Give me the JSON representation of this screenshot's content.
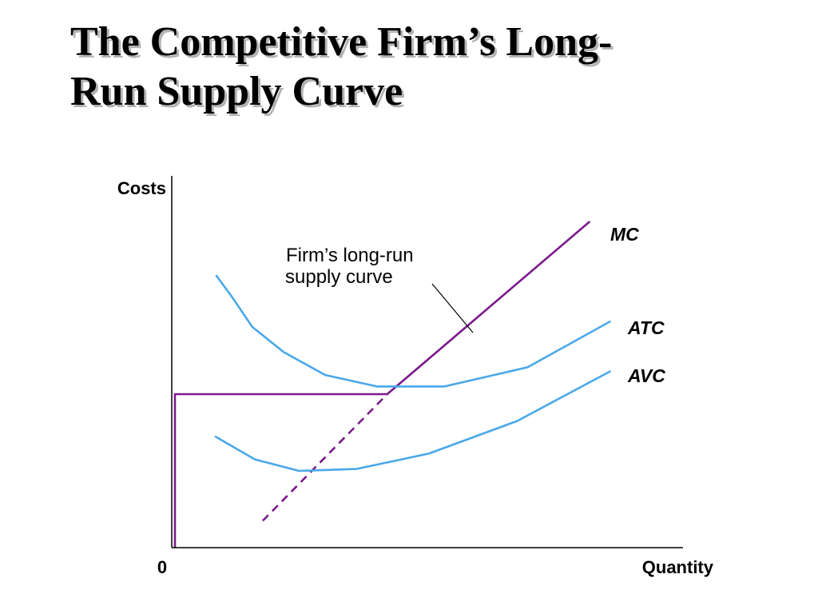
{
  "slide": {
    "title_line1": "The Competitive Firm’s Long-",
    "title_line2": "Run Supply Curve"
  },
  "colors": {
    "mc": "#7b1a8c",
    "cost_curves": "#4aa8ea",
    "axis": "#000000",
    "pointer": "#000000",
    "title_shadow": "#b3b3b3"
  },
  "chart_data": {
    "type": "line",
    "xlabel": "Quantity",
    "ylabel": "Costs",
    "origin_label": "0",
    "xlim": [
      0,
      10
    ],
    "ylim": [
      0,
      10
    ],
    "grid": false,
    "ticks": false,
    "series": [
      {
        "name": "MC",
        "style": "solid",
        "color": "#7b1a8c",
        "x": [
          4.09,
          7.99
        ],
        "y": [
          4.0,
          8.5
        ]
      },
      {
        "name": "MC (below minimum AVC)",
        "style": "dashed",
        "color": "#7b1a8c",
        "x": [
          1.69,
          4.09
        ],
        "y": [
          0.7,
          4.0
        ]
      },
      {
        "name": "ATC",
        "style": "solid",
        "color": "#4aa8ea",
        "x": [
          0.79,
          1.09,
          1.49,
          2.09,
          2.89,
          3.89,
          5.19,
          6.79,
          8.39
        ],
        "y": [
          7.1,
          6.55,
          5.75,
          5.1,
          4.5,
          4.2,
          4.2,
          4.7,
          5.9
        ]
      },
      {
        "name": "AVC",
        "style": "solid",
        "color": "#4aa8ea",
        "x": [
          0.77,
          1.54,
          2.39,
          3.49,
          4.89,
          6.59,
          8.39
        ],
        "y": [
          2.9,
          2.3,
          2.0,
          2.05,
          2.45,
          3.3,
          4.6
        ]
      },
      {
        "name": "Firm’s long-run supply curve",
        "style": "solid",
        "color": "#7b1a8c",
        "x": [
          0,
          0,
          4.09
        ],
        "y": [
          0,
          4.0,
          4.0
        ]
      }
    ],
    "annotations": [
      {
        "text_line1": "Firm’s long-run",
        "text_line2": "supply curve",
        "points_to": "MC"
      }
    ]
  }
}
